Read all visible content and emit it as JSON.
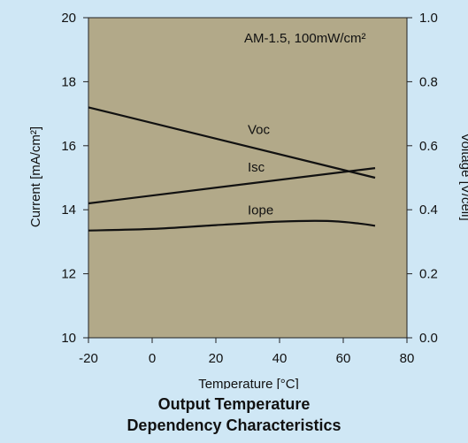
{
  "chart_data": {
    "type": "line",
    "title_lines": [
      "Output Temperature",
      "Dependency Characteristics"
    ],
    "xlabel": "Temperature [°C]",
    "ylabel_left": "Current [mA/cm²]",
    "ylabel_right": "Voltage [V/cell]",
    "xlim": [
      -20,
      80
    ],
    "ylim_left": [
      10,
      20
    ],
    "ylim_right": [
      0.0,
      1.0
    ],
    "xticks": [
      "-20",
      "0",
      "20",
      "40",
      "60",
      "80"
    ],
    "yticks_left": [
      "10",
      "12",
      "14",
      "16",
      "18",
      "20"
    ],
    "yticks_right": [
      "0.0",
      "0.2",
      "0.4",
      "0.6",
      "0.8",
      "1.0"
    ],
    "annotation": "AM-1.5, 100mW/cm²",
    "grid": false,
    "series": [
      {
        "name": "Voc",
        "axis": "right",
        "x": [
          -20,
          70
        ],
        "y": [
          0.72,
          0.5
        ]
      },
      {
        "name": "Isc",
        "axis": "left",
        "x": [
          -20,
          70
        ],
        "y": [
          14.2,
          15.3
        ]
      },
      {
        "name": "Iope",
        "axis": "left",
        "x": [
          -20,
          0,
          20,
          40,
          55,
          65,
          70
        ],
        "y": [
          13.35,
          13.4,
          13.52,
          13.63,
          13.65,
          13.57,
          13.5
        ]
      }
    ],
    "colors": {
      "plot_bg": "#b2a989",
      "page_bg": "#cfe7f5",
      "line": "#111111"
    }
  }
}
